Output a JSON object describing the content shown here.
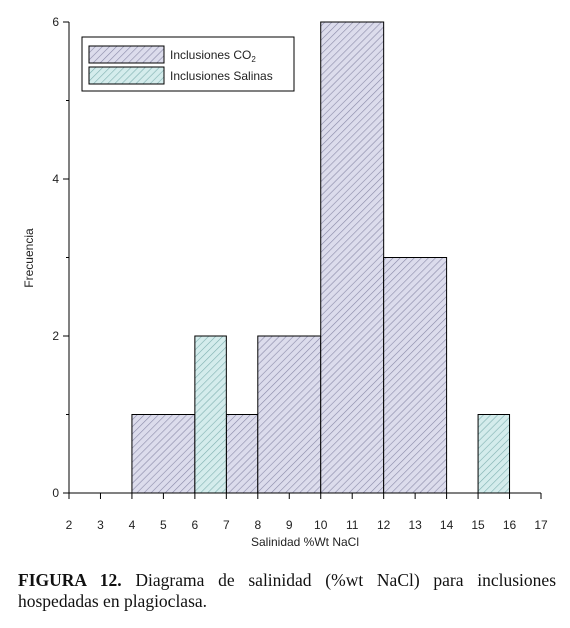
{
  "chart_data": {
    "type": "bar",
    "subtype": "histogram",
    "xlabel": "Salinidad %Wt NaCl",
    "ylabel": "Frecuencia",
    "xlim": [
      2,
      17
    ],
    "ylim": [
      0,
      6
    ],
    "x_ticks": [
      2,
      3,
      4,
      5,
      6,
      7,
      8,
      9,
      10,
      11,
      12,
      13,
      14,
      15,
      16,
      17
    ],
    "y_ticks": [
      0,
      2,
      4,
      6
    ],
    "legend_position": "top-left",
    "series": [
      {
        "name": "Inclusiones CO",
        "name_subscript": "2",
        "fill": "#dcdcec",
        "hatch": "#8a8aa8",
        "bars": [
          {
            "x0": 4,
            "x1": 6,
            "value": 1
          },
          {
            "x0": 7,
            "x1": 8,
            "value": 1
          },
          {
            "x0": 8,
            "x1": 10,
            "value": 2
          },
          {
            "x0": 10,
            "x1": 12,
            "value": 6
          },
          {
            "x0": 12,
            "x1": 14,
            "value": 3
          }
        ]
      },
      {
        "name": "Inclusiones Salinas",
        "fill": "#d4ecec",
        "hatch": "#7fb0b0",
        "bars": [
          {
            "x0": 6,
            "x1": 7,
            "value": 2
          },
          {
            "x0": 15,
            "x1": 16,
            "value": 1
          }
        ]
      }
    ]
  },
  "caption": {
    "label": "FIGURA 12.",
    "text": " Diagrama de salinidad (%wt NaCl) para inclusiones hospedadas en plagioclasa."
  }
}
